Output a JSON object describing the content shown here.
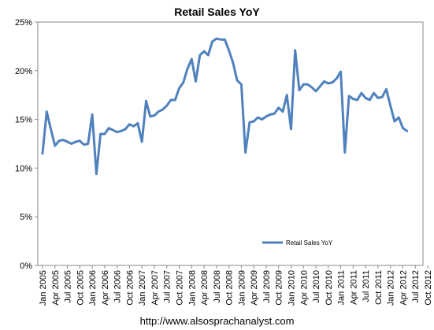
{
  "chart_data": {
    "type": "line",
    "title": "Retail Sales  YoY",
    "source": "http://www.alsosprachanalyst.com",
    "xlabel": "",
    "ylabel": "",
    "ylim": [
      0,
      25
    ],
    "y_ticks": [
      "0%",
      "5%",
      "10%",
      "15%",
      "20%",
      "25%"
    ],
    "y_tick_values": [
      0,
      5,
      10,
      15,
      20,
      25
    ],
    "x_tick_labels": [
      "Jan 2005",
      "Apr 2005",
      "Jul 2005",
      "Oct 2005",
      "Jan 2006",
      "Apr 2006",
      "Jul 2006",
      "Oct 2006",
      "Jan 2007",
      "Apr 2007",
      "Jul 2007",
      "Oct 2007",
      "Jan 2008",
      "Apr 2008",
      "Jul 2008",
      "Oct 2008",
      "Jan 2009",
      "Apr 2009",
      "Jul 2009",
      "Oct 2009",
      "Jan 2010",
      "Apr 2010",
      "Jul 2010",
      "Oct 2010",
      "Jan 2011",
      "Apr 2011",
      "Jul 2011",
      "Oct 2011",
      "Jan 2012",
      "Apr 2012",
      "Jul 2012",
      "Oct 2012"
    ],
    "grid": false,
    "legend_position": "bottom-right",
    "series": [
      {
        "name": "Retail Sales YoY",
        "color": "#4f81bd",
        "values": [
          11.5,
          15.8,
          14.0,
          12.3,
          12.8,
          12.9,
          12.7,
          12.5,
          12.7,
          12.8,
          12.4,
          12.5,
          15.5,
          9.4,
          13.5,
          13.5,
          14.1,
          13.9,
          13.7,
          13.8,
          14.0,
          14.5,
          14.3,
          14.6,
          12.7,
          16.9,
          15.3,
          15.4,
          15.8,
          16.0,
          16.4,
          17.0,
          17.0,
          18.2,
          18.8,
          20.2,
          21.2,
          18.9,
          21.6,
          22.0,
          21.6,
          23.0,
          23.3,
          23.2,
          23.2,
          22.1,
          20.8,
          19.0,
          18.6,
          11.6,
          14.7,
          14.8,
          15.2,
          15.0,
          15.3,
          15.5,
          15.6,
          16.2,
          15.8,
          17.5,
          14.0,
          22.1,
          18.0,
          18.6,
          18.6,
          18.3,
          17.9,
          18.4,
          18.9,
          18.7,
          18.8,
          19.2,
          19.9,
          11.6,
          17.4,
          17.1,
          17.0,
          17.7,
          17.2,
          17.0,
          17.7,
          17.2,
          17.3,
          18.1,
          16.4,
          14.8,
          15.2,
          14.1,
          13.8
        ]
      }
    ]
  }
}
